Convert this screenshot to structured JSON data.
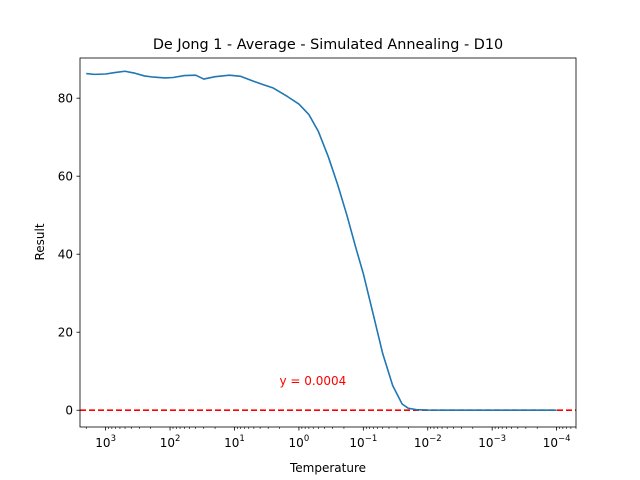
{
  "chart_data": {
    "type": "line",
    "title": "De Jong 1 - Average - Simulated Annealing - D10",
    "xlabel": "Temperature",
    "ylabel": "Result",
    "x_scale": "log",
    "x_inverted": true,
    "xlim": [
      2500,
      5e-05
    ],
    "ylim": [
      -4.3,
      90.3
    ],
    "x_ticks": [
      {
        "value": 1000,
        "base": "10",
        "exp": "3"
      },
      {
        "value": 100,
        "base": "10",
        "exp": "2"
      },
      {
        "value": 10,
        "base": "10",
        "exp": "1"
      },
      {
        "value": 1,
        "base": "10",
        "exp": "0"
      },
      {
        "value": 0.1,
        "base": "10",
        "exp": "−1"
      },
      {
        "value": 0.01,
        "base": "10",
        "exp": "−2"
      },
      {
        "value": 0.001,
        "base": "10",
        "exp": "−3"
      },
      {
        "value": 0.0001,
        "base": "10",
        "exp": "−4"
      }
    ],
    "y_ticks": [
      0,
      20,
      40,
      60,
      80
    ],
    "y_tick_labels": [
      "0",
      "20",
      "40",
      "60",
      "80"
    ],
    "grid": false,
    "series": [
      {
        "color": "#1f77b4",
        "points": [
          {
            "x": 2000,
            "y": 86.3
          },
          {
            "x": 1500,
            "y": 86.1
          },
          {
            "x": 1000,
            "y": 86.2
          },
          {
            "x": 700,
            "y": 86.6
          },
          {
            "x": 500,
            "y": 86.9
          },
          {
            "x": 350,
            "y": 86.4
          },
          {
            "x": 250,
            "y": 85.7
          },
          {
            "x": 180,
            "y": 85.4
          },
          {
            "x": 120,
            "y": 85.2
          },
          {
            "x": 90,
            "y": 85.3
          },
          {
            "x": 60,
            "y": 85.8
          },
          {
            "x": 40,
            "y": 85.9
          },
          {
            "x": 30,
            "y": 84.9
          },
          {
            "x": 20,
            "y": 85.5
          },
          {
            "x": 12,
            "y": 85.9
          },
          {
            "x": 8,
            "y": 85.6
          },
          {
            "x": 5,
            "y": 84.3
          },
          {
            "x": 3.5,
            "y": 83.4
          },
          {
            "x": 2.5,
            "y": 82.6
          },
          {
            "x": 1.5,
            "y": 80.4
          },
          {
            "x": 1,
            "y": 78.5
          },
          {
            "x": 0.7,
            "y": 75.8
          },
          {
            "x": 0.5,
            "y": 71.5
          },
          {
            "x": 0.35,
            "y": 65.0
          },
          {
            "x": 0.25,
            "y": 57.8
          },
          {
            "x": 0.18,
            "y": 50.0
          },
          {
            "x": 0.13,
            "y": 41.5
          },
          {
            "x": 0.1,
            "y": 35.0
          },
          {
            "x": 0.07,
            "y": 24.5
          },
          {
            "x": 0.05,
            "y": 14.5
          },
          {
            "x": 0.035,
            "y": 6.3
          },
          {
            "x": 0.025,
            "y": 1.6
          },
          {
            "x": 0.02,
            "y": 0.5
          },
          {
            "x": 0.015,
            "y": 0.15
          },
          {
            "x": 0.01,
            "y": 0.05
          },
          {
            "x": 0.005,
            "y": 0.01
          },
          {
            "x": 0.001,
            "y": 0.001
          },
          {
            "x": 0.0001,
            "y": 0.0004
          }
        ]
      }
    ],
    "reference_line": {
      "y": 0.0004,
      "color": "#ff0000",
      "style": "dashed"
    },
    "annotations": [
      {
        "text": "y = 0.0004",
        "x": 2,
        "y": 7.5,
        "color": "#ff0000"
      }
    ]
  }
}
